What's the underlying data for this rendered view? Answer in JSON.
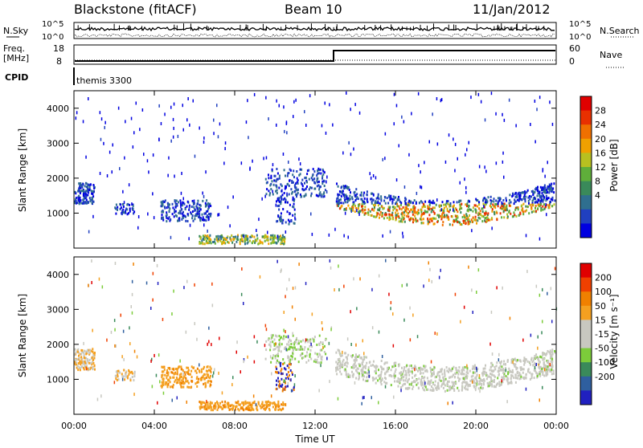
{
  "header": {
    "radar": "Blackstone (fitACF)",
    "beam": "Beam 10",
    "date": "11/Jan/2012"
  },
  "top_panels": {
    "nsky_label": "N.Sky",
    "nsearch_label": "N.Search",
    "noise_left_ticks": [
      "10^5",
      "10^0"
    ],
    "noise_right_ticks": [
      "10^5",
      "10^0"
    ],
    "freq_label_line1": "Freq.",
    "freq_label_line2": "[MHz]",
    "freq_ticks": [
      "18",
      "8"
    ],
    "nave_label": "Nave",
    "nave_ticks": [
      "60",
      "0"
    ],
    "cpid_label": "CPID",
    "cpid_value": "themis 3300"
  },
  "chart_data": [
    {
      "type": "heatmap",
      "name": "power",
      "ylabel": "Slant Range [km]",
      "yticks": [
        "4000",
        "3000",
        "2000",
        "1000"
      ],
      "colorbar_label": "Power [dB]",
      "colorbar_ticks": [
        "28",
        "24",
        "20",
        "16",
        "12",
        "8",
        "4"
      ],
      "colors": [
        "#0000e0",
        "#2040c0",
        "#2f6f8f",
        "#3a8a5a",
        "#5fae3a",
        "#b8c020",
        "#f0a000",
        "#f07000",
        "#e83000",
        "#e00000"
      ],
      "ylim": [
        0,
        4500
      ],
      "xlim": [
        0,
        24
      ]
    },
    {
      "type": "heatmap",
      "name": "velocity",
      "ylabel": "Slant Range [km]",
      "yticks": [
        "4000",
        "3000",
        "2000",
        "1000"
      ],
      "colorbar_label": "Velocity [m s⁻¹]",
      "colorbar_ticks": [
        "200",
        "100",
        "50",
        "15",
        "-15",
        "-50",
        "-100",
        "-200"
      ],
      "colors": [
        "#2020c0",
        "#2f5f9f",
        "#3a8a5a",
        "#7ccc3a",
        "#c8c8c0",
        "#c8c8c0",
        "#f4a020",
        "#f08000",
        "#f04000",
        "#e00000"
      ],
      "ylim": [
        0,
        4500
      ],
      "xlim": [
        0,
        24
      ],
      "xlabel": "Time UT",
      "xticks": [
        "00:00",
        "04:00",
        "08:00",
        "12:00",
        "16:00",
        "20:00",
        "00:00"
      ]
    }
  ]
}
